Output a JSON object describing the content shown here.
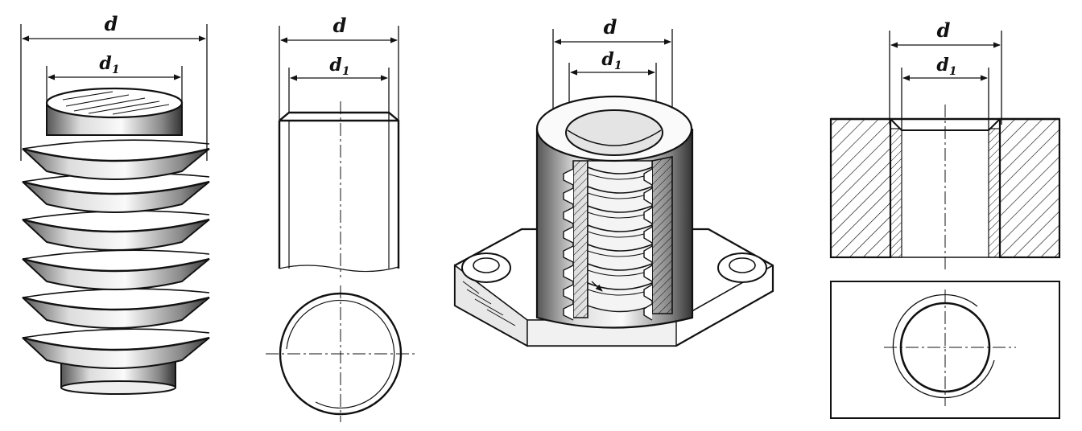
{
  "labels": {
    "outer_diameter": "d",
    "inner_diameter": "d",
    "inner_subscript": "1"
  },
  "panels": [
    {
      "name": "external-thread-isometric"
    },
    {
      "name": "external-thread-drawing"
    },
    {
      "name": "internal-thread-isometric"
    },
    {
      "name": "internal-thread-drawing"
    }
  ],
  "colors": {
    "ink": "#111111",
    "paper": "#ffffff"
  }
}
